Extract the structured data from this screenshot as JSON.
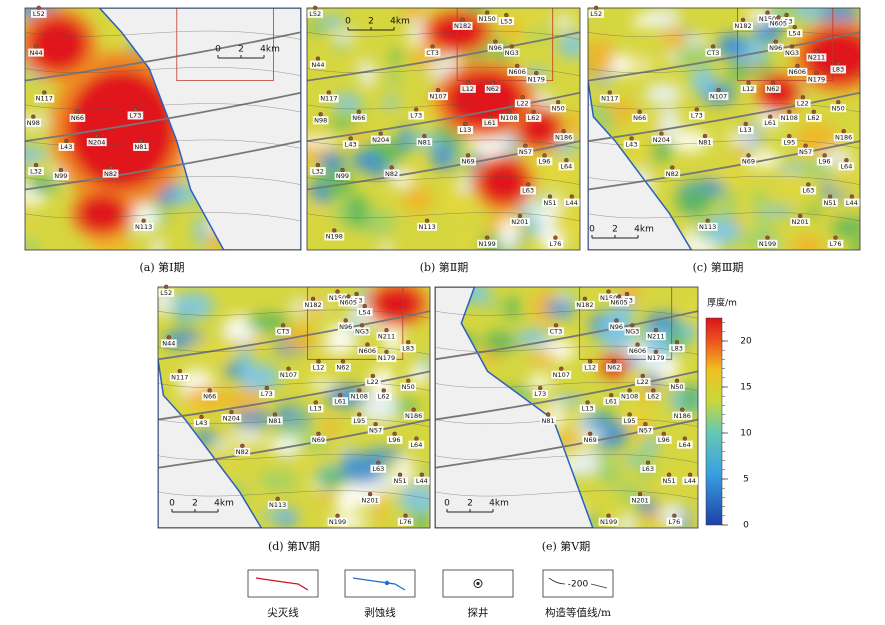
{
  "panels": [
    {
      "caption": "(a) 第Ⅰ期",
      "scale": [
        "0",
        "2",
        "4km"
      ],
      "wells": [
        "L52",
        "N44",
        "N117",
        "N98",
        "N66",
        "L73",
        "N204",
        "N81",
        "L43",
        "L32",
        "N99",
        "N82",
        "N113"
      ]
    },
    {
      "caption": "(b) 第Ⅱ期",
      "scale": [
        "0",
        "2",
        "4km"
      ],
      "wells": [
        "L52",
        "N44",
        "N182",
        "N150",
        "L53",
        "CT3",
        "N96",
        "NG3",
        "N606",
        "N179",
        "N117",
        "N107",
        "L12",
        "N62",
        "L22",
        "N50",
        "N98",
        "N66",
        "L73",
        "L13",
        "L61",
        "N108",
        "L62",
        "N186",
        "L43",
        "N204",
        "N81",
        "N57",
        "N69",
        "L96",
        "L64",
        "L32",
        "N99",
        "N82",
        "L63",
        "N51",
        "L44",
        "N113",
        "N201",
        "N198",
        "N199",
        "L76"
      ]
    },
    {
      "caption": "(c) 第Ⅲ期",
      "scale": [
        "0",
        "2",
        "4km"
      ],
      "wells": [
        "L52",
        "N182",
        "N150",
        "L53",
        "N605",
        "L54",
        "CT3",
        "N96",
        "NG3",
        "N211",
        "N606",
        "L83",
        "N179",
        "N117",
        "N107",
        "L12",
        "N62",
        "L22",
        "N50",
        "N66",
        "L73",
        "L13",
        "L61",
        "N108",
        "L62",
        "L95",
        "N186",
        "L43",
        "N204",
        "N81",
        "N57",
        "L96",
        "L64",
        "N69",
        "N82",
        "L63",
        "N51",
        "L44",
        "N113",
        "N201",
        "N199",
        "L76"
      ]
    },
    {
      "caption": "(d) 第Ⅳ期",
      "scale": [
        "0",
        "2",
        "4km"
      ],
      "wells": [
        "L52",
        "N182",
        "N150",
        "L53",
        "N605",
        "L54",
        "N44",
        "CT3",
        "N96",
        "NG3",
        "N211",
        "N606",
        "L83",
        "N179",
        "N117",
        "N107",
        "L12",
        "N62",
        "L22",
        "N50",
        "N66",
        "L73",
        "L13",
        "L61",
        "N108",
        "L62",
        "L95",
        "N186",
        "L43",
        "N204",
        "N81",
        "N57",
        "N69",
        "L96",
        "L64",
        "N82",
        "L63",
        "N51",
        "L44",
        "N113",
        "N201",
        "N199",
        "L76"
      ]
    },
    {
      "caption": "(e) 第Ⅴ期",
      "scale": [
        "0",
        "2",
        "4km"
      ],
      "wells": [
        "N182",
        "N150",
        "L53",
        "N605",
        "CT3",
        "N96",
        "NG3",
        "N211",
        "N606",
        "L83",
        "N179",
        "N107",
        "L12",
        "N62",
        "L22",
        "N50",
        "L73",
        "L13",
        "L61",
        "N108",
        "L62",
        "L95",
        "N186",
        "N81",
        "N57",
        "N69",
        "L96",
        "L64",
        "L63",
        "N51",
        "L44",
        "N201",
        "N199",
        "L76"
      ]
    }
  ],
  "colorbar": {
    "title": "厚度/m",
    "lim": [
      0,
      22.5
    ],
    "ticks": [
      0,
      5,
      10,
      15,
      20
    ]
  },
  "legend": [
    {
      "label": "尖灭线"
    },
    {
      "label": "剥蚀线"
    },
    {
      "label": "探井"
    },
    {
      "label": "构造等值线/m",
      "sample": "-200"
    }
  ]
}
